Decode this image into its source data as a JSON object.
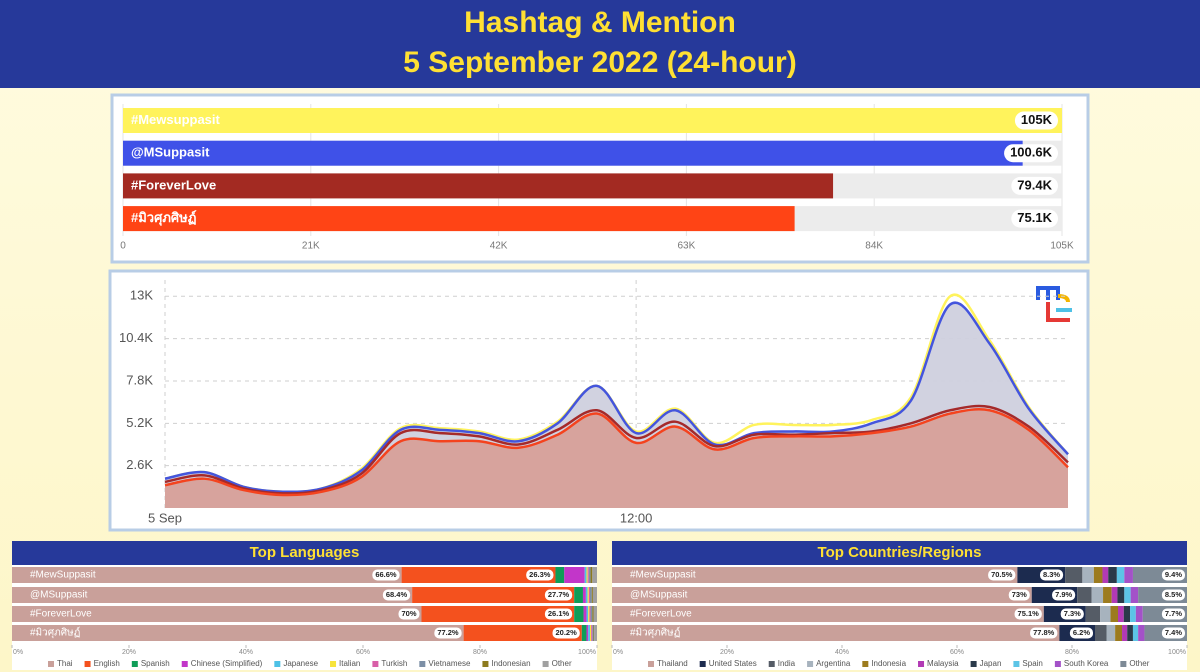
{
  "header": {
    "title": "Hashtag & Mention",
    "subtitle": "5 September 2022 (24-hour)"
  },
  "chart_data": [
    {
      "type": "bar",
      "orientation": "horizontal",
      "categories": [
        "#Mewsuppasit",
        "@MSuppasit",
        "#ForeverLove",
        "#มิวศุภศิษฏ์"
      ],
      "values": [
        105000,
        100600,
        79400,
        75100
      ],
      "value_labels": [
        "105K",
        "100.6K",
        "79.4K",
        "75.1K"
      ],
      "colors": [
        "#fff35c",
        "#3f51e8",
        "#a32a22",
        "#ff4415"
      ],
      "xlim": [
        0,
        105000
      ],
      "xticks": [
        0,
        {
          "value": 21000,
          "label": "21K"
        },
        {
          "value": 42000,
          "label": "42K"
        },
        {
          "value": 63000,
          "label": "63K"
        },
        {
          "value": 84000,
          "label": "84K"
        },
        {
          "value": 105000,
          "label": "105K"
        }
      ],
      "grid": true
    },
    {
      "type": "line",
      "x": [
        0,
        1,
        2,
        3,
        4,
        5,
        6,
        7,
        8,
        9,
        10,
        11,
        12,
        13,
        14,
        15,
        16,
        17,
        18,
        19,
        20,
        21,
        22,
        23
      ],
      "xlim": [
        0,
        23
      ],
      "xticks": [
        {
          "value": 0,
          "label": "5 Sep"
        },
        {
          "value": 12,
          "label": "12:00"
        }
      ],
      "ylim": [
        0,
        14000
      ],
      "yticks": [
        {
          "value": 2600,
          "label": "2.6K"
        },
        {
          "value": 5200,
          "label": "5.2K"
        },
        {
          "value": 7800,
          "label": "7.8K"
        },
        {
          "value": 10400,
          "label": "10.4K"
        },
        {
          "value": 13000,
          "label": "13K"
        }
      ],
      "grid": true,
      "series": [
        {
          "name": "#Mewsuppasit",
          "color": "#fff35c",
          "values": [
            1800,
            2200,
            1300,
            1000,
            1200,
            2400,
            4900,
            4900,
            4700,
            4200,
            5300,
            7500,
            4700,
            6100,
            4000,
            5100,
            5100,
            5100,
            5400,
            6800,
            13000,
            10300,
            6200,
            3300
          ]
        },
        {
          "name": "@MSuppasit",
          "color": "#4455dd",
          "fill": "#cfd0de",
          "values": [
            1800,
            2200,
            1300,
            1000,
            1200,
            2300,
            4800,
            4800,
            4600,
            4100,
            5200,
            7500,
            4600,
            6000,
            3900,
            4600,
            4700,
            4700,
            5200,
            6600,
            12500,
            10100,
            6100,
            3300
          ]
        },
        {
          "name": "#ForeverLove",
          "color": "#a52a2a",
          "values": [
            1600,
            2000,
            1200,
            900,
            1100,
            2100,
            4600,
            4600,
            4400,
            3900,
            4800,
            6000,
            4300,
            5300,
            3800,
            4500,
            4500,
            4600,
            4700,
            5200,
            6000,
            6200,
            5000,
            2800
          ]
        },
        {
          "name": "#มิวศุภศิษฏ์",
          "color": "#f4431e",
          "fill": "#d7a099",
          "values": [
            1400,
            1800,
            1100,
            800,
            1000,
            1900,
            4100,
            4100,
            4100,
            3700,
            4500,
            5800,
            4000,
            5000,
            3600,
            4300,
            4400,
            4400,
            4600,
            5000,
            5800,
            6000,
            4800,
            2500
          ]
        }
      ]
    },
    {
      "type": "bar",
      "stacked": true,
      "title": "Top Languages",
      "categories": [
        "#MewSuppasit",
        "@MSuppasit",
        "#ForeverLove",
        "#มิวศุภศิษฏ์"
      ],
      "xlim": [
        0,
        100
      ],
      "xticks": [
        {
          "value": 0,
          "label": "0%"
        },
        {
          "value": 20,
          "label": "20%"
        },
        {
          "value": 40,
          "label": "40%"
        },
        {
          "value": 60,
          "label": "60%"
        },
        {
          "value": 80,
          "label": "80%"
        },
        {
          "value": 100,
          "label": "100%"
        }
      ],
      "series": [
        {
          "name": "Thai",
          "color": "#c9a09a",
          "values": [
            66.6,
            68.4,
            70,
            77.2
          ],
          "value_labels": [
            "66.6%",
            "68.4%",
            "70%",
            "77.2%"
          ]
        },
        {
          "name": "English",
          "color": "#f4511e",
          "values": [
            26.3,
            27.7,
            26.1,
            20.2
          ],
          "value_labels": [
            "26.3%",
            "27.7%",
            "26.1%",
            "20.2%"
          ]
        },
        {
          "name": "Spanish",
          "color": "#0f9d58",
          "values": [
            1.5,
            1.5,
            1.6,
            0.8
          ]
        },
        {
          "name": "Chinese (Simplified)",
          "color": "#c236c9",
          "values": [
            3.5,
            0.5,
            0.5,
            0.3
          ]
        },
        {
          "name": "Japanese",
          "color": "#4ec1e6",
          "values": [
            0.3,
            0.3,
            0.3,
            0.3
          ]
        },
        {
          "name": "Italian",
          "color": "#f7e43b",
          "values": [
            0.2,
            0.2,
            0.2,
            0.2
          ]
        },
        {
          "name": "Turkish",
          "color": "#d85fa8",
          "values": [
            0.2,
            0.2,
            0.2,
            0.2
          ]
        },
        {
          "name": "Vietnamese",
          "color": "#7c8fa6",
          "values": [
            0.3,
            0.3,
            0.3,
            0.2
          ]
        },
        {
          "name": "Indonesian",
          "color": "#8c7a1e",
          "values": [
            0.3,
            0.2,
            0.2,
            0.1
          ]
        },
        {
          "name": "Other",
          "color": "#a0a0a0",
          "values": [
            0.8,
            0.7,
            0.6,
            0.5
          ]
        }
      ]
    },
    {
      "type": "bar",
      "stacked": true,
      "title": "Top Countries/Regions",
      "categories": [
        "#MewSuppasit",
        "@MSuppasit",
        "#ForeverLove",
        "#มิวศุภศิษฏ์"
      ],
      "xlim": [
        0,
        100
      ],
      "xticks": [
        {
          "value": 0,
          "label": "0%"
        },
        {
          "value": 20,
          "label": "20%"
        },
        {
          "value": 40,
          "label": "40%"
        },
        {
          "value": 60,
          "label": "60%"
        },
        {
          "value": 80,
          "label": "80%"
        },
        {
          "value": 100,
          "label": "100%"
        }
      ],
      "series": [
        {
          "name": "Thailand",
          "color": "#c9a09a",
          "values": [
            70.5,
            73,
            75.1,
            77.8
          ],
          "value_labels": [
            "70.5%",
            "73%",
            "75.1%",
            "77.8%"
          ]
        },
        {
          "name": "United States",
          "color": "#1c2b4f",
          "values": [
            8.3,
            7.9,
            7.3,
            6.2
          ],
          "value_labels": [
            "8.3%",
            "7.9%",
            "7.3%",
            "6.2%"
          ]
        },
        {
          "name": "India",
          "color": "#555c66",
          "values": [
            3,
            2.5,
            2.5,
            2
          ]
        },
        {
          "name": "Argentina",
          "color": "#a7b3be",
          "values": [
            2,
            2,
            1.8,
            1.5
          ]
        },
        {
          "name": "Indonesia",
          "color": "#9c7b1e",
          "values": [
            1.5,
            1.5,
            1.3,
            1.2
          ]
        },
        {
          "name": "Malaysia",
          "color": "#b23ab5",
          "values": [
            1,
            1,
            1,
            0.9
          ]
        },
        {
          "name": "Japan",
          "color": "#2a3a4a",
          "values": [
            1.5,
            1.2,
            1.1,
            1
          ]
        },
        {
          "name": "Spain",
          "color": "#5cc4e6",
          "values": [
            1.3,
            1.1,
            1,
            0.9
          ]
        },
        {
          "name": "South Korea",
          "color": "#a352c8",
          "values": [
            1.5,
            1.3,
            1.2,
            1.1
          ]
        },
        {
          "name": "Other",
          "color": "#7d8a96",
          "values": [
            9.4,
            8.5,
            7.7,
            7.4
          ],
          "value_labels": [
            "9.4%",
            "8.5%",
            "7.7%",
            "7.4%"
          ]
        }
      ]
    }
  ]
}
